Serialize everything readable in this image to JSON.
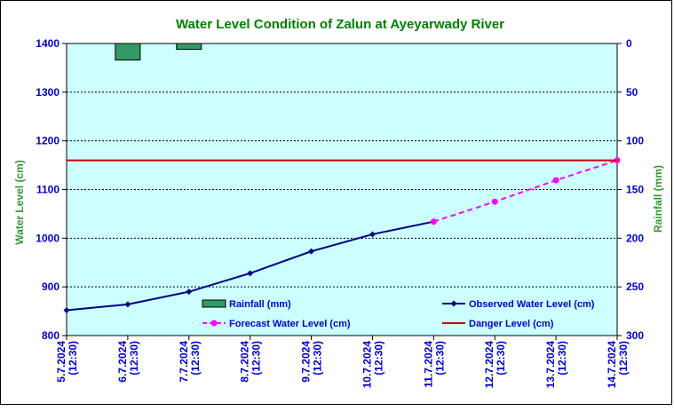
{
  "chart_data": {
    "type": "line",
    "title": "Water Level Condition of Zalun at Ayeyarwady River",
    "ylabel_left": "Water Level (cm)",
    "ylabel_right": "Rainfall (mm)",
    "x_labels": [
      [
        "5.7.2024",
        "(12:30)"
      ],
      [
        "6.7.2024",
        "(12:30)"
      ],
      [
        "7.7.2024",
        "(12:30)"
      ],
      [
        "8.7.2024",
        "(12:30)"
      ],
      [
        "9.7.2024",
        "(12:30)"
      ],
      [
        "10.7.2024",
        "(12:30)"
      ],
      [
        "11.7.2024",
        "(12:30)"
      ],
      [
        "12.7.2024",
        "(12:30)"
      ],
      [
        "13.7.2024",
        "(12:30)"
      ],
      [
        "14.7.2024",
        "(12:30)"
      ]
    ],
    "y_left": {
      "min": 800,
      "max": 1400,
      "ticks": [
        "800",
        "900",
        "1000",
        "1100",
        "1200",
        "1300",
        "1400"
      ]
    },
    "y_right": {
      "min": 0,
      "max": 300,
      "inverted": true,
      "ticks": [
        "0",
        "50",
        "100",
        "150",
        "200",
        "250",
        "300"
      ]
    },
    "grid": true,
    "legend_placement": "bottom-inside",
    "series": [
      {
        "name": "Rainfall (mm)",
        "kind": "bar",
        "axis": "right",
        "color": "#339966",
        "x": [
          1,
          2
        ],
        "values": [
          17,
          6
        ]
      },
      {
        "name": "Observed Water Level (cm)",
        "kind": "line",
        "axis": "left",
        "color": "#000080",
        "x": [
          0,
          1,
          2,
          3,
          4,
          5,
          6
        ],
        "values": [
          852,
          864,
          890,
          928,
          973,
          1008,
          1034
        ]
      },
      {
        "name": "Forecast Water Level (cm)",
        "kind": "dashed-line",
        "axis": "left",
        "color": "#ff00ff",
        "x": [
          6,
          7,
          8,
          9
        ],
        "values": [
          1034,
          1075,
          1119,
          1160
        ]
      },
      {
        "name": "Danger Level (cm)",
        "kind": "hline",
        "axis": "left",
        "color": "#cc0000",
        "values": [
          1160
        ]
      }
    ]
  }
}
